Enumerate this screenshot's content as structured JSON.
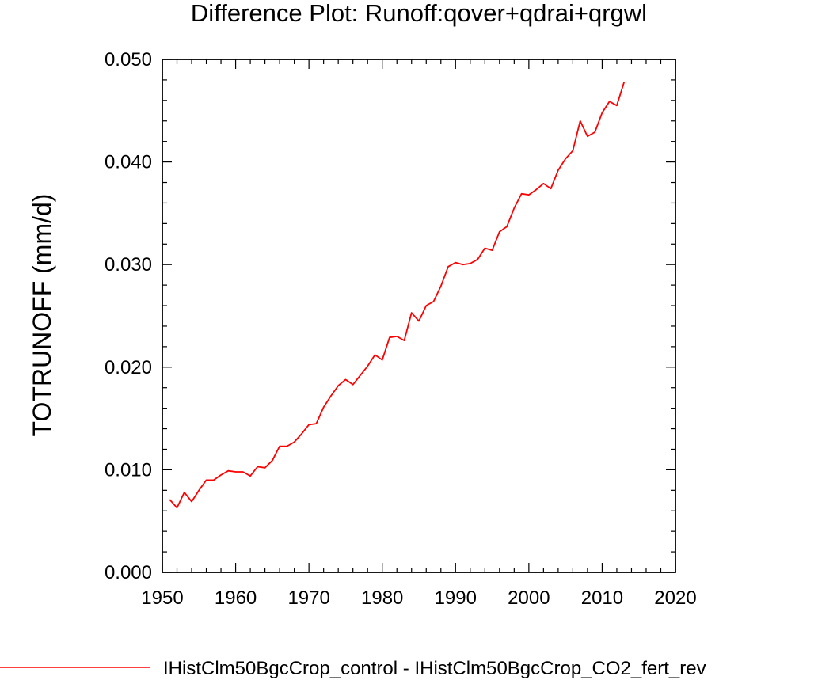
{
  "chart_data": {
    "type": "line",
    "title": "Difference Plot: Runoff:qover+qdrai+qrgwl",
    "xlabel": "",
    "ylabel": "TOTRUNOFF  (mm/d)",
    "xlim": [
      1950,
      2020
    ],
    "ylim": [
      0.0,
      0.05
    ],
    "xticks": [
      1950,
      1960,
      1970,
      1980,
      1990,
      2000,
      2010,
      2020
    ],
    "xtick_labels": [
      "1950",
      "1960",
      "1970",
      "1980",
      "1990",
      "2000",
      "2010",
      "2020"
    ],
    "yticks": [
      0.0,
      0.01,
      0.02,
      0.03,
      0.04,
      0.05
    ],
    "ytick_labels": [
      "0.000",
      "0.010",
      "0.020",
      "0.030",
      "0.040",
      "0.050"
    ],
    "grid": false,
    "legend_position": "bottom",
    "series": [
      {
        "name": "IHistClm50BgcCrop_control - IHistClm50BgcCrop_CO2_fert_rev",
        "color": "#ff0000",
        "x": [
          1951,
          1952,
          1953,
          1954,
          1955,
          1956,
          1957,
          1958,
          1959,
          1960,
          1961,
          1962,
          1963,
          1964,
          1965,
          1966,
          1967,
          1968,
          1969,
          1970,
          1971,
          1972,
          1973,
          1974,
          1975,
          1976,
          1977,
          1978,
          1979,
          1980,
          1981,
          1982,
          1983,
          1984,
          1985,
          1986,
          1987,
          1988,
          1989,
          1990,
          1991,
          1992,
          1993,
          1994,
          1995,
          1996,
          1997,
          1998,
          1999,
          2000,
          2001,
          2002,
          2003,
          2004,
          2005,
          2006,
          2007,
          2008,
          2009,
          2010,
          2011,
          2012,
          2013
        ],
        "y": [
          0.0071,
          0.0063,
          0.0078,
          0.0069,
          0.008,
          0.009,
          0.009,
          0.0095,
          0.0099,
          0.0098,
          0.0098,
          0.0094,
          0.0103,
          0.0102,
          0.0109,
          0.0123,
          0.0123,
          0.0127,
          0.0135,
          0.0144,
          0.0145,
          0.0161,
          0.0172,
          0.0182,
          0.0188,
          0.0183,
          0.0192,
          0.0201,
          0.0212,
          0.0207,
          0.0229,
          0.023,
          0.0226,
          0.0253,
          0.0245,
          0.026,
          0.0264,
          0.0279,
          0.0298,
          0.0302,
          0.03,
          0.0301,
          0.0305,
          0.0316,
          0.0314,
          0.0332,
          0.0337,
          0.0355,
          0.0369,
          0.0368,
          0.0373,
          0.0379,
          0.0374,
          0.0392,
          0.0403,
          0.0411,
          0.044,
          0.0425,
          0.0429,
          0.0448,
          0.0459,
          0.0455,
          0.0478
        ]
      }
    ]
  }
}
